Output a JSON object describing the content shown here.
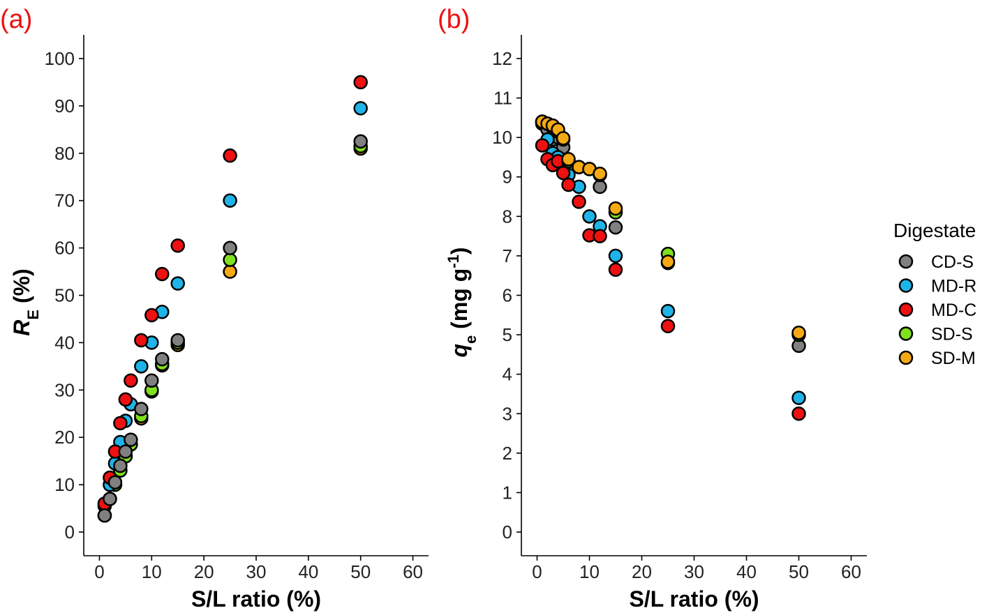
{
  "chart_data": [
    {
      "type": "scatter",
      "panel_label": "(a)",
      "xlabel": "S/L ratio (%)",
      "ylabel_parts": [
        "R",
        "E",
        " (%)"
      ],
      "xlim": [
        -3,
        63
      ],
      "ylim": [
        -5,
        105
      ],
      "xticks": [
        0,
        10,
        20,
        30,
        40,
        50,
        60
      ],
      "yticks": [
        0,
        10,
        20,
        30,
        40,
        50,
        60,
        70,
        80,
        90,
        100
      ],
      "x": [
        1,
        2,
        3,
        4,
        5,
        6,
        8,
        10,
        12,
        15,
        25,
        50
      ],
      "series": [
        {
          "color": "#f5a913",
          "values": [
            3.5,
            7,
            10,
            13,
            16,
            18.5,
            24,
            29.7,
            35.2,
            39.5,
            55,
            81
          ]
        },
        {
          "color": "#7fe01f",
          "values": [
            3.5,
            7,
            10,
            13,
            16,
            18.5,
            24.5,
            30,
            35.5,
            40,
            57.5,
            81.5
          ]
        },
        {
          "color": "#1fb4e8",
          "values": [
            5.5,
            10,
            14.5,
            19,
            23.5,
            27,
            35,
            40,
            46.5,
            52.5,
            70,
            89.5
          ]
        },
        {
          "color": "#ee1111",
          "values": [
            6,
            11.5,
            17,
            23,
            28,
            32,
            40.5,
            45.8,
            54.5,
            60.5,
            79.5,
            95
          ]
        },
        {
          "color": "#808080",
          "values": [
            3.5,
            7,
            10.5,
            14,
            17,
            19.5,
            26,
            32,
            36.5,
            40.5,
            60,
            82.5
          ]
        }
      ]
    },
    {
      "type": "scatter",
      "panel_label": "(b)",
      "xlabel": "S/L ratio (%)",
      "ylabel_parts": [
        "q",
        "e",
        " (mg g",
        "-1",
        ")"
      ],
      "xlim": [
        -3,
        63
      ],
      "ylim": [
        -0.6,
        12.6
      ],
      "xticks": [
        0,
        10,
        20,
        30,
        40,
        50,
        60
      ],
      "yticks": [
        0,
        1,
        2,
        3,
        4,
        5,
        6,
        7,
        8,
        9,
        10,
        11,
        12
      ],
      "x": [
        1,
        2,
        3,
        4,
        5,
        6,
        8,
        10,
        12,
        15,
        25,
        50
      ],
      "legend_title": "Digestate",
      "series": [
        {
          "name": "CD-S",
          "color": "#808080",
          "values": [
            10.35,
            10.2,
            9.95,
            10.0,
            9.75,
            9.4,
            9.25,
            9.2,
            8.75,
            7.72,
            6.82,
            4.72
          ]
        },
        {
          "name": "MD-R",
          "color": "#1fb4e8",
          "values": [
            10.4,
            9.95,
            9.6,
            9.5,
            9.3,
            9.05,
            8.75,
            8.0,
            7.75,
            7.0,
            5.6,
            3.4
          ]
        },
        {
          "name": "MD-C",
          "color": "#ee1111",
          "values": [
            9.8,
            9.45,
            9.3,
            9.4,
            9.1,
            8.8,
            8.37,
            7.52,
            7.5,
            6.65,
            5.22,
            3.0
          ]
        },
        {
          "name": "SD-S",
          "color": "#7fe01f",
          "values": [
            10.4,
            10.35,
            10.25,
            10.15,
            9.95,
            9.4,
            9.25,
            9.2,
            9.05,
            8.1,
            7.05,
            5.0
          ]
        },
        {
          "name": "SD-M",
          "color": "#f5a913",
          "values": [
            10.4,
            10.35,
            10.3,
            10.2,
            9.98,
            9.45,
            9.25,
            9.2,
            9.08,
            8.2,
            6.85,
            5.05
          ]
        }
      ]
    }
  ]
}
